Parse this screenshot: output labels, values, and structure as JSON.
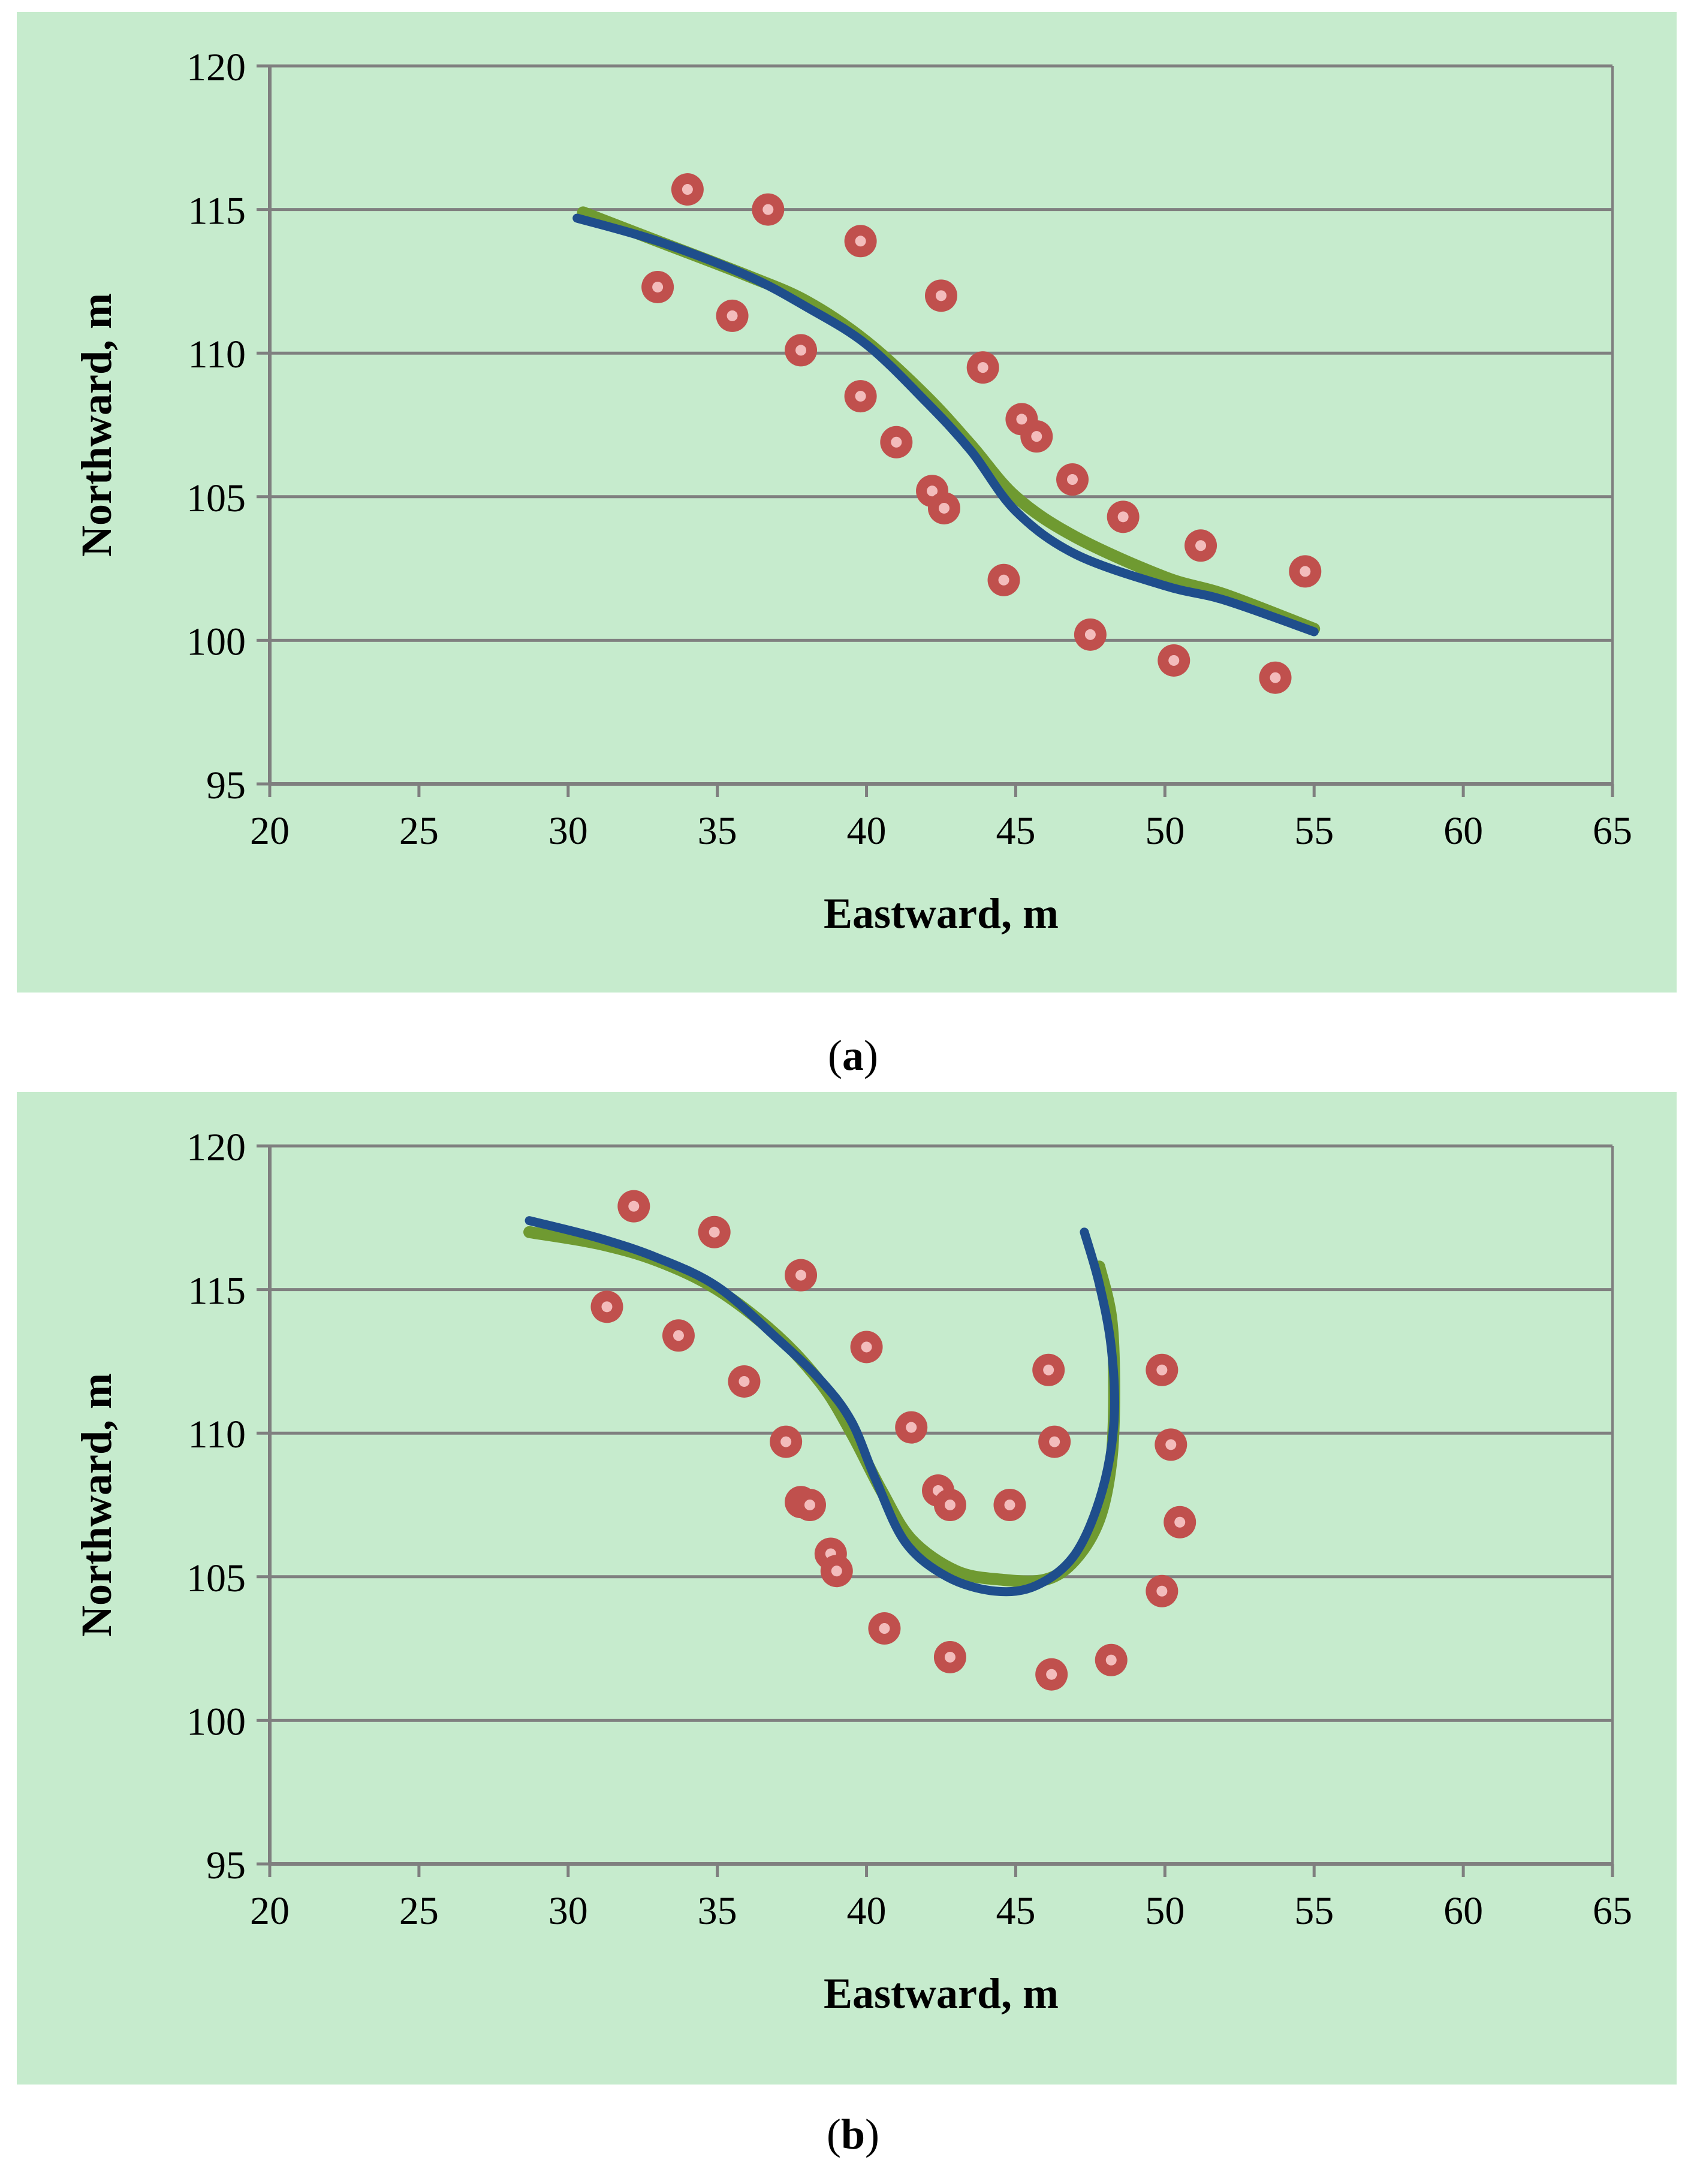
{
  "colors": {
    "panel_bg": "#c6ebcd",
    "grid": "#808080",
    "axis": "#7f7f7f",
    "fit_line_a": "#6f9a31",
    "fit_line_b": "#1f4e8c",
    "marker_fill": "#c0504d",
    "marker_center": "#f3bcbc"
  },
  "captions": {
    "a": "a",
    "b": "b"
  },
  "chart_data": [
    {
      "type": "scatter",
      "panel": "a",
      "title": "",
      "xlabel": "Eastward, m",
      "ylabel": "Northward, m",
      "xlim": [
        20,
        65
      ],
      "ylim": [
        95,
        120
      ],
      "xticks": [
        20,
        25,
        30,
        35,
        40,
        45,
        50,
        55,
        60,
        65
      ],
      "yticks": [
        95,
        100,
        105,
        110,
        115,
        120
      ],
      "grid": true,
      "points": [
        [
          34,
          115.7
        ],
        [
          36.7,
          115
        ],
        [
          33,
          112.3
        ],
        [
          35.5,
          111.3
        ],
        [
          37.8,
          110.1
        ],
        [
          39.8,
          113.9
        ],
        [
          39.8,
          108.5
        ],
        [
          41,
          106.9
        ],
        [
          42.5,
          112
        ],
        [
          42.2,
          105.2
        ],
        [
          42.6,
          104.6
        ],
        [
          43.9,
          109.5
        ],
        [
          45.2,
          107.7
        ],
        [
          45.7,
          107.1
        ],
        [
          44.6,
          102.1
        ],
        [
          46.9,
          105.6
        ],
        [
          48.6,
          104.3
        ],
        [
          47.5,
          100.2
        ],
        [
          50.3,
          99.3
        ],
        [
          51.2,
          103.3
        ],
        [
          53.7,
          98.7
        ],
        [
          54.7,
          102.4
        ]
      ],
      "series": [
        {
          "name": "green line",
          "color_key": "fit_line_a",
          "x": [
            30.5,
            33,
            36,
            38,
            40,
            42,
            43.5,
            45,
            47,
            50,
            52,
            55
          ],
          "y": [
            114.9,
            113.9,
            112.7,
            111.8,
            110.4,
            108.5,
            106.8,
            105,
            103.6,
            102.2,
            101.6,
            100.4
          ]
        },
        {
          "name": "blue line",
          "color_key": "fit_line_b",
          "x": [
            30.3,
            33,
            36,
            38,
            40,
            42,
            43.5,
            45,
            47,
            50,
            52,
            55
          ],
          "y": [
            114.7,
            113.9,
            112.7,
            111.6,
            110.3,
            108.3,
            106.6,
            104.5,
            103,
            101.9,
            101.4,
            100.3
          ]
        }
      ]
    },
    {
      "type": "scatter",
      "panel": "b",
      "title": "",
      "xlabel": "Eastward, m",
      "ylabel": "Northward, m",
      "xlim": [
        20,
        65
      ],
      "ylim": [
        95,
        120
      ],
      "xticks": [
        20,
        25,
        30,
        35,
        40,
        45,
        50,
        55,
        60,
        65
      ],
      "yticks": [
        95,
        100,
        105,
        110,
        115,
        120
      ],
      "grid": true,
      "points": [
        [
          32.2,
          117.9
        ],
        [
          31.3,
          114.4
        ],
        [
          34.9,
          117
        ],
        [
          33.7,
          113.4
        ],
        [
          35.9,
          111.8
        ],
        [
          37.8,
          115.5
        ],
        [
          37.3,
          109.7
        ],
        [
          37.8,
          107.6
        ],
        [
          38.1,
          107.5
        ],
        [
          38.8,
          105.8
        ],
        [
          39,
          105.2
        ],
        [
          40,
          113
        ],
        [
          41.5,
          110.2
        ],
        [
          40.6,
          103.2
        ],
        [
          42.4,
          108
        ],
        [
          42.8,
          107.5
        ],
        [
          42.8,
          102.2
        ],
        [
          44.8,
          107.5
        ],
        [
          46.1,
          112.2
        ],
        [
          46.3,
          109.7
        ],
        [
          46.2,
          101.6
        ],
        [
          48.2,
          102.1
        ],
        [
          49.9,
          112.2
        ],
        [
          50.2,
          109.6
        ],
        [
          50.5,
          106.9
        ],
        [
          49.9,
          104.5
        ]
      ],
      "series": [
        {
          "name": "green line",
          "color_key": "fit_line_a",
          "x": [
            28.7,
            31,
            33,
            35,
            37,
            38.5,
            39.5,
            40.5,
            41.5,
            43,
            44.5,
            46,
            47,
            47.8,
            48.2,
            48.3,
            48.2,
            47.8
          ],
          "y": [
            117,
            116.6,
            116,
            115,
            113.4,
            111.7,
            110,
            108,
            106.3,
            105.2,
            104.9,
            104.9,
            105.6,
            107,
            109,
            111.5,
            114,
            115.8
          ]
        },
        {
          "name": "blue line",
          "color_key": "fit_line_b",
          "x": [
            28.7,
            31,
            33,
            35,
            37,
            38.5,
            39.5,
            40.3,
            41.3,
            42.7,
            44.3,
            45.7,
            47,
            47.9,
            48.3,
            48.2,
            47.8,
            47.3
          ],
          "y": [
            117.4,
            116.8,
            116.1,
            115.1,
            113.3,
            111.8,
            110.4,
            108.4,
            106.2,
            105,
            104.5,
            104.7,
            105.8,
            108,
            110.5,
            113,
            115.2,
            117
          ]
        }
      ]
    }
  ]
}
